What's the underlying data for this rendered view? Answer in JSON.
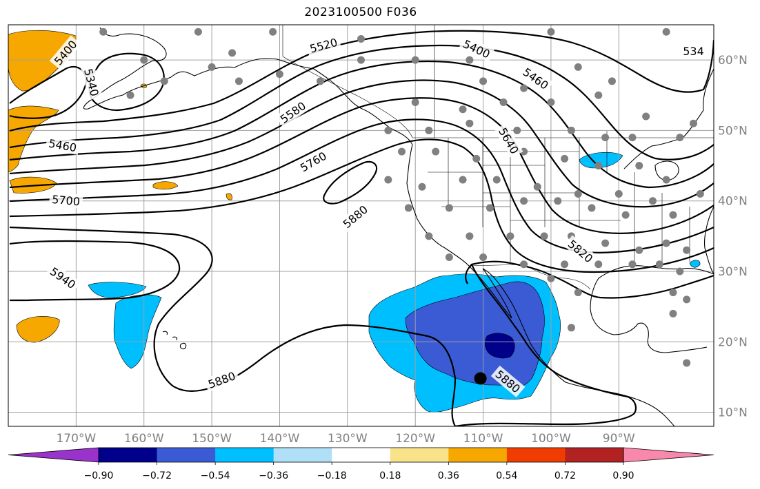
{
  "title": "2023100500 F036",
  "map": {
    "lon_range": [
      -180,
      -76
    ],
    "lat_range": [
      8,
      65
    ],
    "gridlines": true,
    "lon_ticks": [
      {
        "value": -170,
        "label": "170°W"
      },
      {
        "value": -160,
        "label": "160°W"
      },
      {
        "value": -150,
        "label": "150°W"
      },
      {
        "value": -140,
        "label": "140°W"
      },
      {
        "value": -130,
        "label": "130°W"
      },
      {
        "value": -120,
        "label": "120°W"
      },
      {
        "value": -110,
        "label": "110°W"
      },
      {
        "value": -100,
        "label": "100°W"
      },
      {
        "value": -90,
        "label": "90°W"
      }
    ],
    "lat_ticks": [
      {
        "value": 60,
        "label": "60°N"
      },
      {
        "value": 50,
        "label": "50°N"
      },
      {
        "value": 40,
        "label": "40°N"
      },
      {
        "value": 30,
        "label": "30°N"
      },
      {
        "value": 20,
        "label": "20°N"
      },
      {
        "value": 10,
        "label": "10°N"
      }
    ],
    "contour_labels": [
      {
        "text": "5400",
        "lon": -171.5,
        "lat": 61.0,
        "rot": -50
      },
      {
        "text": "5340",
        "lon": -167.8,
        "lat": 56.8,
        "rot": 75
      },
      {
        "text": "5460",
        "lon": -172.0,
        "lat": 47.8,
        "rot": 10
      },
      {
        "text": "5700",
        "lon": -171.5,
        "lat": 40.0,
        "rot": 5
      },
      {
        "text": "5940",
        "lon": -172.0,
        "lat": 29.0,
        "rot": 35
      },
      {
        "text": "5520",
        "lon": -133.5,
        "lat": 62.0,
        "rot": -15
      },
      {
        "text": "5580",
        "lon": -138.0,
        "lat": 52.5,
        "rot": -35
      },
      {
        "text": "5760",
        "lon": -135.0,
        "lat": 45.5,
        "rot": -30
      },
      {
        "text": "5880",
        "lon": -128.8,
        "lat": 37.7,
        "rot": -40
      },
      {
        "text": "5400",
        "lon": -111.0,
        "lat": 61.5,
        "rot": 25
      },
      {
        "text": "5460",
        "lon": -102.3,
        "lat": 57.3,
        "rot": 35
      },
      {
        "text": "5640",
        "lon": -106.3,
        "lat": 48.5,
        "rot": 60
      },
      {
        "text": "5820",
        "lon": -95.7,
        "lat": 32.8,
        "rot": 40
      },
      {
        "text": "5880",
        "lon": -148.5,
        "lat": 14.5,
        "rot": -20
      },
      {
        "text": "5880",
        "lon": -106.4,
        "lat": 14.3,
        "rot": 40
      },
      {
        "text": "534",
        "lon": -79.0,
        "lat": 61.2,
        "rot": 0
      }
    ],
    "station_count": 112,
    "storm_center": {
      "lon": -110.4,
      "lat": 14.8
    }
  },
  "colorbar": {
    "bins": [
      {
        "color": "#9933cc"
      },
      {
        "color": "#00008b"
      },
      {
        "color": "#3a5bd4"
      },
      {
        "color": "#00bfff"
      },
      {
        "color": "#b0e0f8"
      },
      {
        "color": "#ffffff"
      },
      {
        "color": "#f8e38a"
      },
      {
        "color": "#f6a800"
      },
      {
        "color": "#f03c00"
      },
      {
        "color": "#b22222"
      },
      {
        "color": "#f888ac"
      }
    ],
    "tick_labels": [
      "−0.90",
      "−0.72",
      "−0.54",
      "−0.36",
      "−0.18",
      "0.18",
      "0.36",
      "0.54",
      "0.72",
      "0.90"
    ]
  }
}
